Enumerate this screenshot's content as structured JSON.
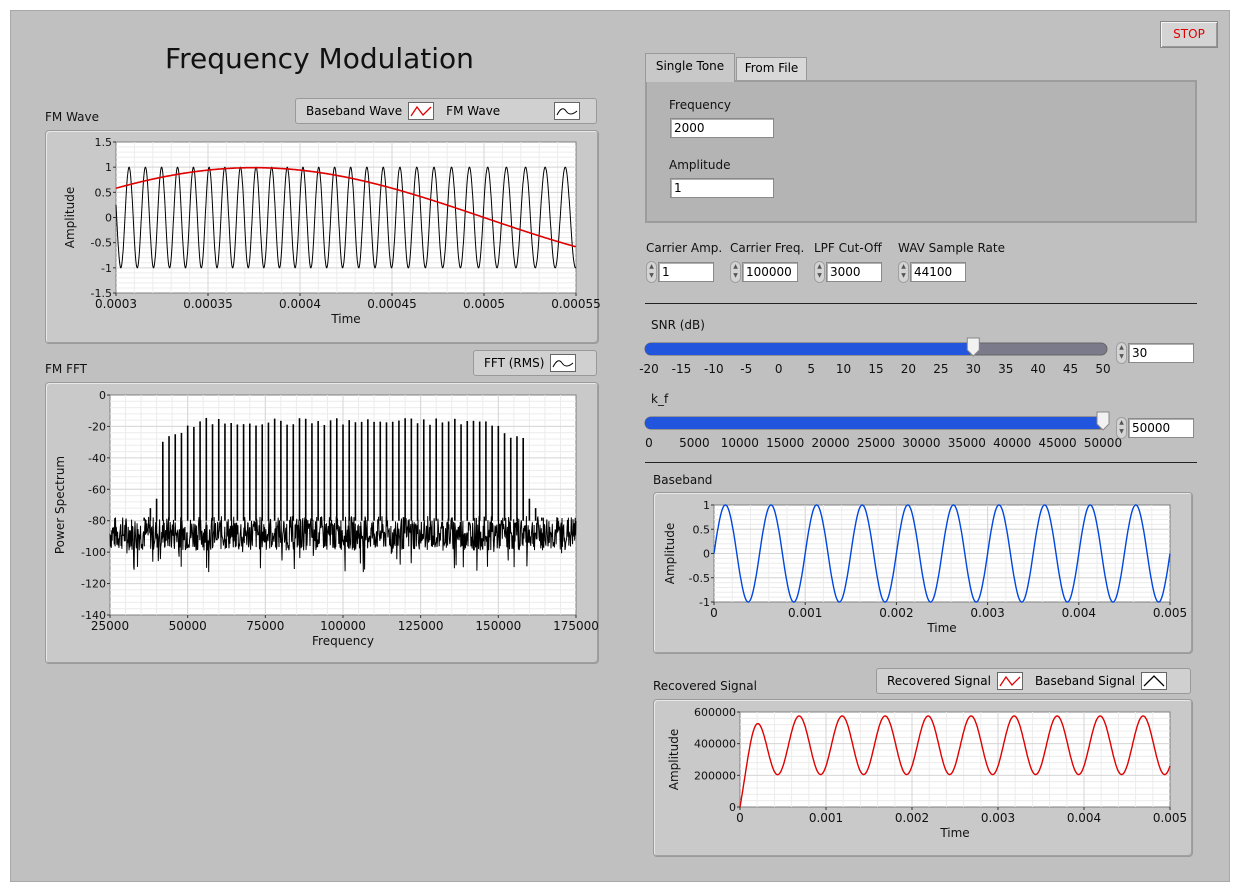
{
  "title": "Frequency Modulation",
  "stop_label": "STOP",
  "colors": {
    "panel": "#c0c0c0",
    "baseband_blue": "#0047e0",
    "recovered_red": "#e00000",
    "fm_black": "#000000",
    "slider_fill": "#2255dd",
    "slider_track": "#7a7a8a"
  },
  "fm_wave": {
    "label": "FM Wave",
    "legend": [
      {
        "label": "Baseband Wave",
        "color": "#e00000"
      },
      {
        "label": "FM Wave",
        "color": "#000000"
      }
    ],
    "xlabel": "Time",
    "ylabel": "Amplitude",
    "xticks": [
      "0.0003",
      "0.00035",
      "0.0004",
      "0.00045",
      "0.0005",
      "0.00055"
    ],
    "yticks": [
      "1.5",
      "1",
      "0.5",
      "0",
      "-0.5",
      "-1",
      "-1.5"
    ]
  },
  "fm_fft": {
    "label": "FM FFT",
    "legend": [
      {
        "label": "FFT (RMS)",
        "color": "#000000"
      }
    ],
    "xlabel": "Frequency",
    "ylabel": "Power Spectrum",
    "xticks": [
      "25000",
      "50000",
      "75000",
      "100000",
      "125000",
      "150000",
      "175000"
    ],
    "yticks": [
      "0",
      "-20",
      "-40",
      "-60",
      "-80",
      "-100",
      "-120",
      "-140"
    ]
  },
  "tabs": [
    {
      "label": "Single Tone",
      "active": true
    },
    {
      "label": "From File",
      "active": false
    }
  ],
  "single_tone": {
    "frequency_label": "Frequency",
    "frequency_value": "2000",
    "amplitude_label": "Amplitude",
    "amplitude_value": "1"
  },
  "params": [
    {
      "label": "Carrier Amp.",
      "value": "1"
    },
    {
      "label": "Carrier Freq.",
      "value": "100000"
    },
    {
      "label": "LPF Cut-Off",
      "value": "3000"
    },
    {
      "label": "WAV Sample Rate",
      "value": "44100"
    }
  ],
  "snr": {
    "label": "SNR (dB)",
    "value": "30",
    "level": 30,
    "min": -20,
    "max": 50,
    "ticks": [
      "-20",
      "-15",
      "-10",
      "-5",
      "0",
      "5",
      "10",
      "15",
      "20",
      "25",
      "30",
      "35",
      "40",
      "45",
      "50"
    ]
  },
  "kf": {
    "label": "k_f",
    "value": "50000",
    "level": 50000,
    "min": 0,
    "max": 50000,
    "ticks": [
      "0",
      "5000",
      "10000",
      "15000",
      "20000",
      "25000",
      "30000",
      "35000",
      "40000",
      "45000",
      "50000"
    ]
  },
  "baseband": {
    "label": "Baseband",
    "xlabel": "Time",
    "ylabel": "Amplitude",
    "xticks": [
      "0",
      "0.001",
      "0.002",
      "0.003",
      "0.004",
      "0.005"
    ],
    "yticks": [
      "1",
      "0.5",
      "0",
      "-0.5",
      "-1"
    ]
  },
  "recovered": {
    "label": "Recovered Signal",
    "legend": [
      {
        "label": "Recovered Signal",
        "color": "#e00000"
      },
      {
        "label": "Baseband Signal",
        "color": "#000000"
      }
    ],
    "xlabel": "Time",
    "ylabel": "Amplitude",
    "xticks": [
      "0",
      "0.001",
      "0.002",
      "0.003",
      "0.004",
      "0.005"
    ],
    "yticks": [
      "600000",
      "400000",
      "200000",
      "0"
    ]
  }
}
